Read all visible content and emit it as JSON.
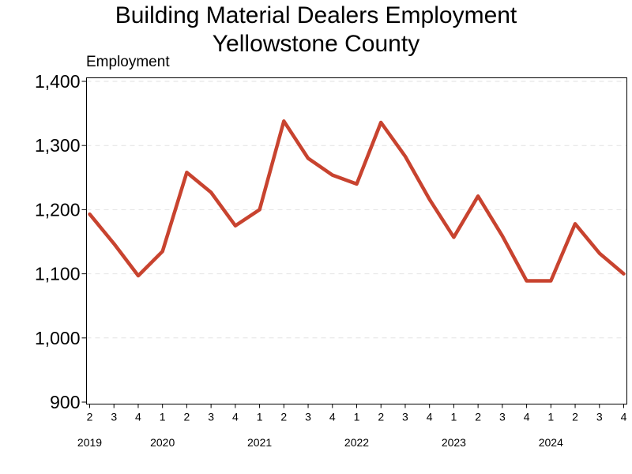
{
  "chart_data": {
    "type": "line",
    "title": "Building Material Dealers Employment",
    "subtitle": "Yellowstone County",
    "ylabel": "Employment",
    "xlabel": "",
    "ylim": [
      900,
      1400
    ],
    "yticks": [
      "900",
      "1,000",
      "1,100",
      "1,200",
      "1,300",
      "1,400"
    ],
    "grid": "horizontal dashed",
    "line_color": "#C8432F",
    "x_quarters": [
      "2",
      "3",
      "4",
      "1",
      "2",
      "3",
      "4",
      "1",
      "2",
      "3",
      "4",
      "1",
      "2",
      "3",
      "4",
      "1",
      "2",
      "3",
      "4",
      "1",
      "2",
      "3",
      "4"
    ],
    "years": [
      {
        "label": "2019",
        "start_index": 0
      },
      {
        "label": "2020",
        "start_index": 3
      },
      {
        "label": "2021",
        "start_index": 7
      },
      {
        "label": "2022",
        "start_index": 11
      },
      {
        "label": "2023",
        "start_index": 15
      },
      {
        "label": "2024",
        "start_index": 19
      }
    ],
    "series": [
      {
        "values": [
          1193,
          1147,
          1097,
          1135,
          1258,
          1227,
          1175,
          1200,
          1338,
          1280,
          1254,
          1240,
          1336,
          1283,
          1216,
          1157,
          1221,
          1159,
          1089,
          1089,
          1178,
          1132,
          1100
        ]
      }
    ]
  }
}
